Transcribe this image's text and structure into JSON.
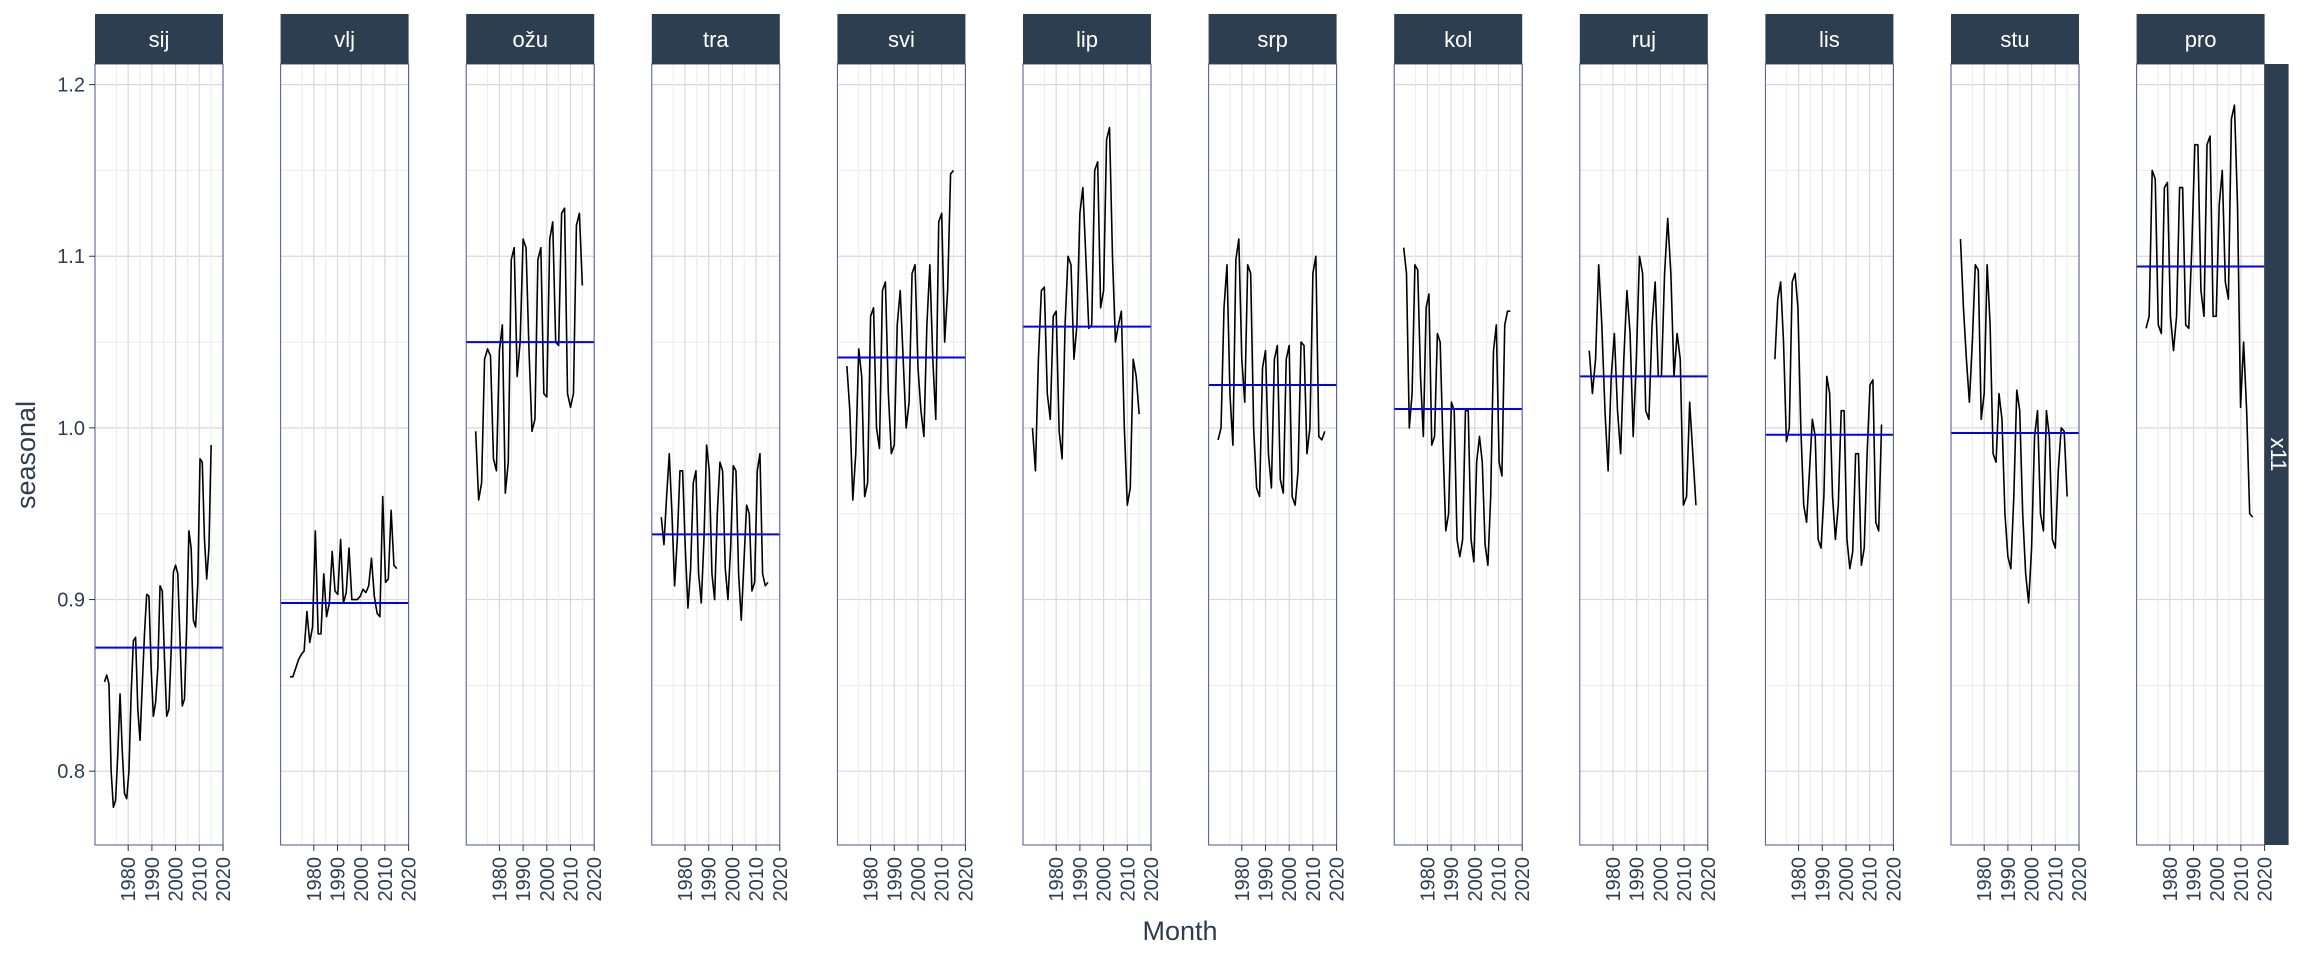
{
  "chart_data": {
    "type": "line",
    "facet_strip_label": "x11",
    "xlabel": "Month",
    "ylabel": "seasonal",
    "ylim": [
      0.757,
      1.212
    ],
    "xlim": [
      1966,
      2020
    ],
    "yticks": [
      0.8,
      0.9,
      1.0,
      1.1,
      1.2
    ],
    "ytick_labels": [
      "0.8",
      "0.9",
      "1.0",
      "1.1",
      "1.2"
    ],
    "xticks": [
      1980,
      1990,
      2000,
      2010,
      2020
    ],
    "xtick_labels": [
      "1980",
      "1990",
      "2000",
      "2010",
      "2020"
    ],
    "grid": true,
    "colors": {
      "strip_bg": "#2d3e50",
      "strip_text": "#ffffff",
      "series_line": "#000000",
      "mean_line": "#0000ff",
      "grid": "#d9d9d9",
      "panel_border": "#4a5a8a",
      "axis_text": "#2d3e50"
    },
    "panels": [
      {
        "label": "sij",
        "mean": 0.872,
        "x_start": 1970,
        "x_end": 2015,
        "values": [
          0.852,
          0.856,
          0.851,
          0.8,
          0.779,
          0.783,
          0.81,
          0.845,
          0.812,
          0.787,
          0.784,
          0.8,
          0.845,
          0.876,
          0.878,
          0.836,
          0.818,
          0.85,
          0.88,
          0.903,
          0.902,
          0.86,
          0.832,
          0.84,
          0.86,
          0.908,
          0.905,
          0.866,
          0.832,
          0.836,
          0.87,
          0.916,
          0.92,
          0.915,
          0.876,
          0.838,
          0.842,
          0.885,
          0.94,
          0.93,
          0.888,
          0.884,
          0.91,
          0.982,
          0.98,
          0.935,
          0.912,
          0.93,
          0.99
        ]
      },
      {
        "label": "vlj",
        "mean": 0.898,
        "x_start": 1970,
        "x_end": 2015,
        "values": [
          0.855,
          0.855,
          0.86,
          0.865,
          0.868,
          0.87,
          0.893,
          0.875,
          0.884,
          0.94,
          0.88,
          0.88,
          0.915,
          0.89,
          0.898,
          0.928,
          0.905,
          0.903,
          0.935,
          0.898,
          0.904,
          0.93,
          0.9,
          0.9,
          0.9,
          0.902,
          0.906,
          0.904,
          0.908,
          0.924,
          0.902,
          0.892,
          0.89,
          0.96,
          0.91,
          0.912,
          0.952,
          0.92,
          0.918
        ]
      },
      {
        "label": "ožu",
        "mean": 1.05,
        "x_start": 1970,
        "x_end": 2015,
        "values": [
          0.998,
          0.958,
          0.968,
          1.04,
          1.046,
          1.042,
          0.982,
          0.975,
          1.045,
          1.06,
          0.962,
          0.98,
          1.098,
          1.105,
          1.03,
          1.05,
          1.11,
          1.105,
          1.045,
          0.998,
          1.005,
          1.098,
          1.105,
          1.02,
          1.018,
          1.11,
          1.12,
          1.05,
          1.048,
          1.125,
          1.128,
          1.02,
          1.012,
          1.02,
          1.118,
          1.125,
          1.083
        ]
      },
      {
        "label": "tra",
        "mean": 0.938,
        "x_start": 1970,
        "x_end": 2015,
        "values": [
          0.948,
          0.932,
          0.96,
          0.985,
          0.95,
          0.908,
          0.935,
          0.975,
          0.975,
          0.93,
          0.895,
          0.918,
          0.968,
          0.975,
          0.915,
          0.898,
          0.935,
          0.99,
          0.975,
          0.915,
          0.9,
          0.95,
          0.98,
          0.975,
          0.918,
          0.9,
          0.93,
          0.978,
          0.975,
          0.915,
          0.888,
          0.922,
          0.955,
          0.95,
          0.905,
          0.91,
          0.975,
          0.985,
          0.915,
          0.908,
          0.91
        ]
      },
      {
        "label": "svi",
        "mean": 1.041,
        "x_start": 1970,
        "x_end": 2015,
        "values": [
          1.036,
          1.01,
          0.958,
          0.985,
          1.046,
          1.03,
          0.96,
          0.968,
          1.065,
          1.07,
          1.0,
          0.988,
          1.08,
          1.085,
          1.02,
          0.985,
          0.99,
          1.06,
          1.08,
          1.04,
          1.0,
          1.015,
          1.09,
          1.095,
          1.035,
          1.01,
          0.995,
          1.06,
          1.095,
          1.04,
          1.005,
          1.12,
          1.125,
          1.05,
          1.08,
          1.148,
          1.15
        ]
      },
      {
        "label": "lip",
        "mean": 1.059,
        "x_start": 1970,
        "x_end": 2015,
        "values": [
          1.0,
          0.975,
          1.04,
          1.08,
          1.082,
          1.02,
          1.005,
          1.065,
          1.068,
          0.998,
          0.982,
          1.06,
          1.1,
          1.095,
          1.04,
          1.06,
          1.125,
          1.14,
          1.1,
          1.058,
          1.06,
          1.15,
          1.155,
          1.07,
          1.08,
          1.168,
          1.175,
          1.1,
          1.05,
          1.06,
          1.068,
          1.0,
          0.955,
          0.965,
          1.04,
          1.03,
          1.008
        ]
      },
      {
        "label": "srp",
        "mean": 1.025,
        "x_start": 1970,
        "x_end": 2015,
        "values": [
          0.993,
          1.0,
          1.07,
          1.095,
          1.02,
          0.99,
          1.098,
          1.11,
          1.04,
          1.015,
          1.095,
          1.09,
          1.0,
          0.965,
          0.96,
          1.035,
          1.045,
          0.985,
          0.965,
          1.04,
          1.048,
          0.97,
          0.962,
          1.04,
          1.048,
          0.96,
          0.955,
          0.975,
          1.05,
          1.048,
          0.985,
          1.0,
          1.09,
          1.1,
          0.995,
          0.993,
          0.998
        ]
      },
      {
        "label": "kol",
        "mean": 1.011,
        "x_start": 1970,
        "x_end": 2015,
        "values": [
          1.105,
          1.09,
          1.0,
          1.02,
          1.095,
          1.092,
          1.03,
          0.995,
          1.07,
          1.078,
          0.99,
          0.995,
          1.055,
          1.05,
          0.99,
          0.94,
          0.95,
          1.015,
          1.01,
          0.935,
          0.925,
          0.935,
          1.01,
          1.01,
          0.935,
          0.922,
          0.98,
          0.995,
          0.98,
          0.932,
          0.92,
          0.96,
          1.045,
          1.06,
          0.98,
          0.972,
          1.06,
          1.068,
          1.068
        ]
      },
      {
        "label": "ruj",
        "mean": 1.03,
        "x_start": 1970,
        "x_end": 2015,
        "values": [
          1.045,
          1.02,
          1.04,
          1.095,
          1.06,
          1.01,
          0.975,
          1.03,
          1.055,
          1.01,
          0.985,
          1.04,
          1.08,
          1.055,
          0.995,
          1.04,
          1.1,
          1.09,
          1.01,
          1.005,
          1.06,
          1.085,
          1.03,
          1.03,
          1.09,
          1.122,
          1.09,
          1.03,
          1.055,
          1.04,
          0.955,
          0.96,
          1.015,
          0.985,
          0.955
        ]
      },
      {
        "label": "lis",
        "mean": 0.996,
        "x_start": 1970,
        "x_end": 2015,
        "values": [
          1.04,
          1.075,
          1.085,
          1.05,
          0.992,
          1.0,
          1.085,
          1.09,
          1.07,
          1.0,
          0.955,
          0.945,
          0.975,
          1.005,
          0.995,
          0.935,
          0.93,
          0.96,
          1.03,
          1.02,
          0.96,
          0.935,
          0.955,
          1.01,
          1.01,
          0.935,
          0.918,
          0.928,
          0.985,
          0.985,
          0.92,
          0.93,
          0.985,
          1.025,
          1.028,
          0.945,
          0.94,
          1.002
        ]
      },
      {
        "label": "stu",
        "mean": 0.997,
        "x_start": 1970,
        "x_end": 2015,
        "values": [
          1.11,
          1.07,
          1.04,
          1.015,
          1.05,
          1.095,
          1.092,
          1.005,
          1.02,
          1.095,
          1.06,
          0.985,
          0.98,
          1.02,
          1.005,
          0.95,
          0.925,
          0.918,
          0.96,
          1.022,
          1.01,
          0.95,
          0.915,
          0.898,
          0.93,
          0.995,
          1.01,
          0.95,
          0.94,
          1.01,
          0.995,
          0.935,
          0.93,
          0.975,
          1.0,
          0.998,
          0.96
        ]
      },
      {
        "label": "pro",
        "mean": 1.094,
        "x_start": 1970,
        "x_end": 2015,
        "values": [
          1.058,
          1.065,
          1.15,
          1.145,
          1.06,
          1.055,
          1.14,
          1.143,
          1.065,
          1.045,
          1.065,
          1.14,
          1.14,
          1.06,
          1.058,
          1.105,
          1.165,
          1.165,
          1.08,
          1.065,
          1.165,
          1.17,
          1.065,
          1.065,
          1.13,
          1.15,
          1.085,
          1.075,
          1.18,
          1.188,
          1.13,
          1.012,
          1.05,
          1.01,
          0.95,
          0.948
        ]
      }
    ]
  }
}
